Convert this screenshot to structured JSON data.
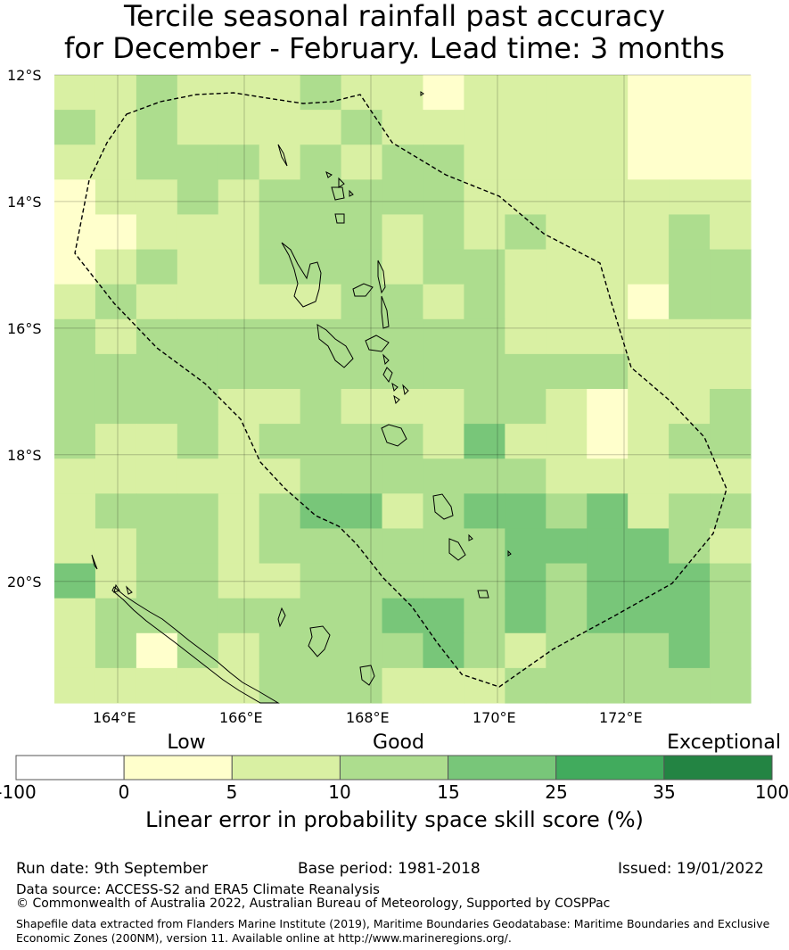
{
  "title": {
    "line1": "Tercile seasonal rainfall past accuracy",
    "line2": "for December - February. Lead time: 3 months"
  },
  "map": {
    "lat_labels": [
      "12°S",
      "14°S",
      "16°S",
      "18°S",
      "20°S"
    ],
    "lon_labels": [
      "164°E",
      "166°E",
      "168°E",
      "170°E",
      "172°E"
    ],
    "grid_values": [
      [
        10,
        10,
        15,
        10,
        10,
        10,
        15,
        10,
        10,
        0,
        5,
        5,
        10,
        5,
        0,
        0,
        0
      ],
      [
        15,
        10,
        15,
        10,
        10,
        10,
        10,
        15,
        10,
        10,
        5,
        5,
        10,
        10,
        0,
        0,
        0
      ],
      [
        10,
        10,
        15,
        15,
        15,
        10,
        15,
        10,
        15,
        15,
        10,
        10,
        10,
        10,
        0,
        0,
        0
      ],
      [
        0,
        10,
        10,
        15,
        10,
        15,
        15,
        15,
        15,
        15,
        10,
        10,
        10,
        10,
        10,
        10,
        10
      ],
      [
        0,
        0,
        10,
        10,
        10,
        15,
        15,
        15,
        10,
        15,
        10,
        15,
        10,
        10,
        10,
        15,
        10
      ],
      [
        0,
        10,
        15,
        10,
        10,
        15,
        15,
        15,
        10,
        15,
        15,
        10,
        10,
        10,
        10,
        15,
        15
      ],
      [
        10,
        15,
        10,
        10,
        10,
        10,
        10,
        15,
        15,
        10,
        15,
        10,
        10,
        10,
        0,
        15,
        15
      ],
      [
        15,
        10,
        15,
        15,
        15,
        15,
        15,
        15,
        15,
        15,
        15,
        10,
        10,
        10,
        10,
        10,
        10
      ],
      [
        15,
        15,
        15,
        15,
        15,
        15,
        15,
        15,
        15,
        15,
        15,
        15,
        15,
        15,
        10,
        10,
        10
      ],
      [
        15,
        15,
        15,
        15,
        10,
        10,
        15,
        10,
        10,
        10,
        15,
        15,
        10,
        0,
        10,
        10,
        15
      ],
      [
        15,
        10,
        10,
        15,
        10,
        15,
        15,
        15,
        15,
        10,
        25,
        10,
        10,
        0,
        10,
        15,
        15
      ],
      [
        10,
        10,
        10,
        10,
        10,
        10,
        15,
        15,
        15,
        15,
        15,
        15,
        10,
        10,
        10,
        10,
        10
      ],
      [
        10,
        15,
        15,
        15,
        10,
        15,
        25,
        25,
        10,
        15,
        25,
        25,
        15,
        25,
        10,
        15,
        15
      ],
      [
        10,
        10,
        15,
        15,
        10,
        15,
        15,
        15,
        15,
        15,
        15,
        25,
        25,
        25,
        25,
        15,
        10
      ],
      [
        25,
        10,
        15,
        15,
        10,
        10,
        15,
        15,
        15,
        15,
        15,
        25,
        15,
        25,
        25,
        25,
        15
      ],
      [
        10,
        15,
        15,
        15,
        15,
        15,
        15,
        15,
        25,
        25,
        15,
        25,
        15,
        25,
        25,
        25,
        15
      ],
      [
        10,
        15,
        0,
        15,
        10,
        15,
        15,
        15,
        15,
        25,
        15,
        10,
        15,
        15,
        15,
        25,
        15
      ],
      [
        10,
        10,
        10,
        10,
        10,
        15,
        15,
        15,
        10,
        10,
        10,
        15,
        15,
        15,
        15,
        15,
        15
      ]
    ]
  },
  "legend": {
    "categories": [
      "Low",
      "Good",
      "Exceptional"
    ],
    "ticks": [
      "-100",
      "0",
      "5",
      "10",
      "15",
      "25",
      "35",
      "100"
    ],
    "colors": [
      "#ffffff",
      "#ffffcc",
      "#d9f0a3",
      "#addd8e",
      "#78c679",
      "#41ab5d",
      "#238443"
    ],
    "label": "Linear error in probability space skill score (%)"
  },
  "footer": {
    "run_date": "Run date: 9th September",
    "base_period": "Base period: 1981-2018",
    "issued": "Issued: 19/01/2022",
    "data_source": "Data source: ACCESS-S2 and ERA5 Climate Reanalysis",
    "copyright": "© Commonwealth of Australia 2022, Australian Bureau of Meteorology, Supported by COSPPac",
    "shapefile_line1": "Shapefile data extracted from Flanders Marine Institute (2019), Maritime Boundaries Geodatabase: Maritime Boundaries and Exclusive",
    "shapefile_line2": "Economic Zones (200NM), version 11. Available online at http://www.marineregions.org/."
  }
}
